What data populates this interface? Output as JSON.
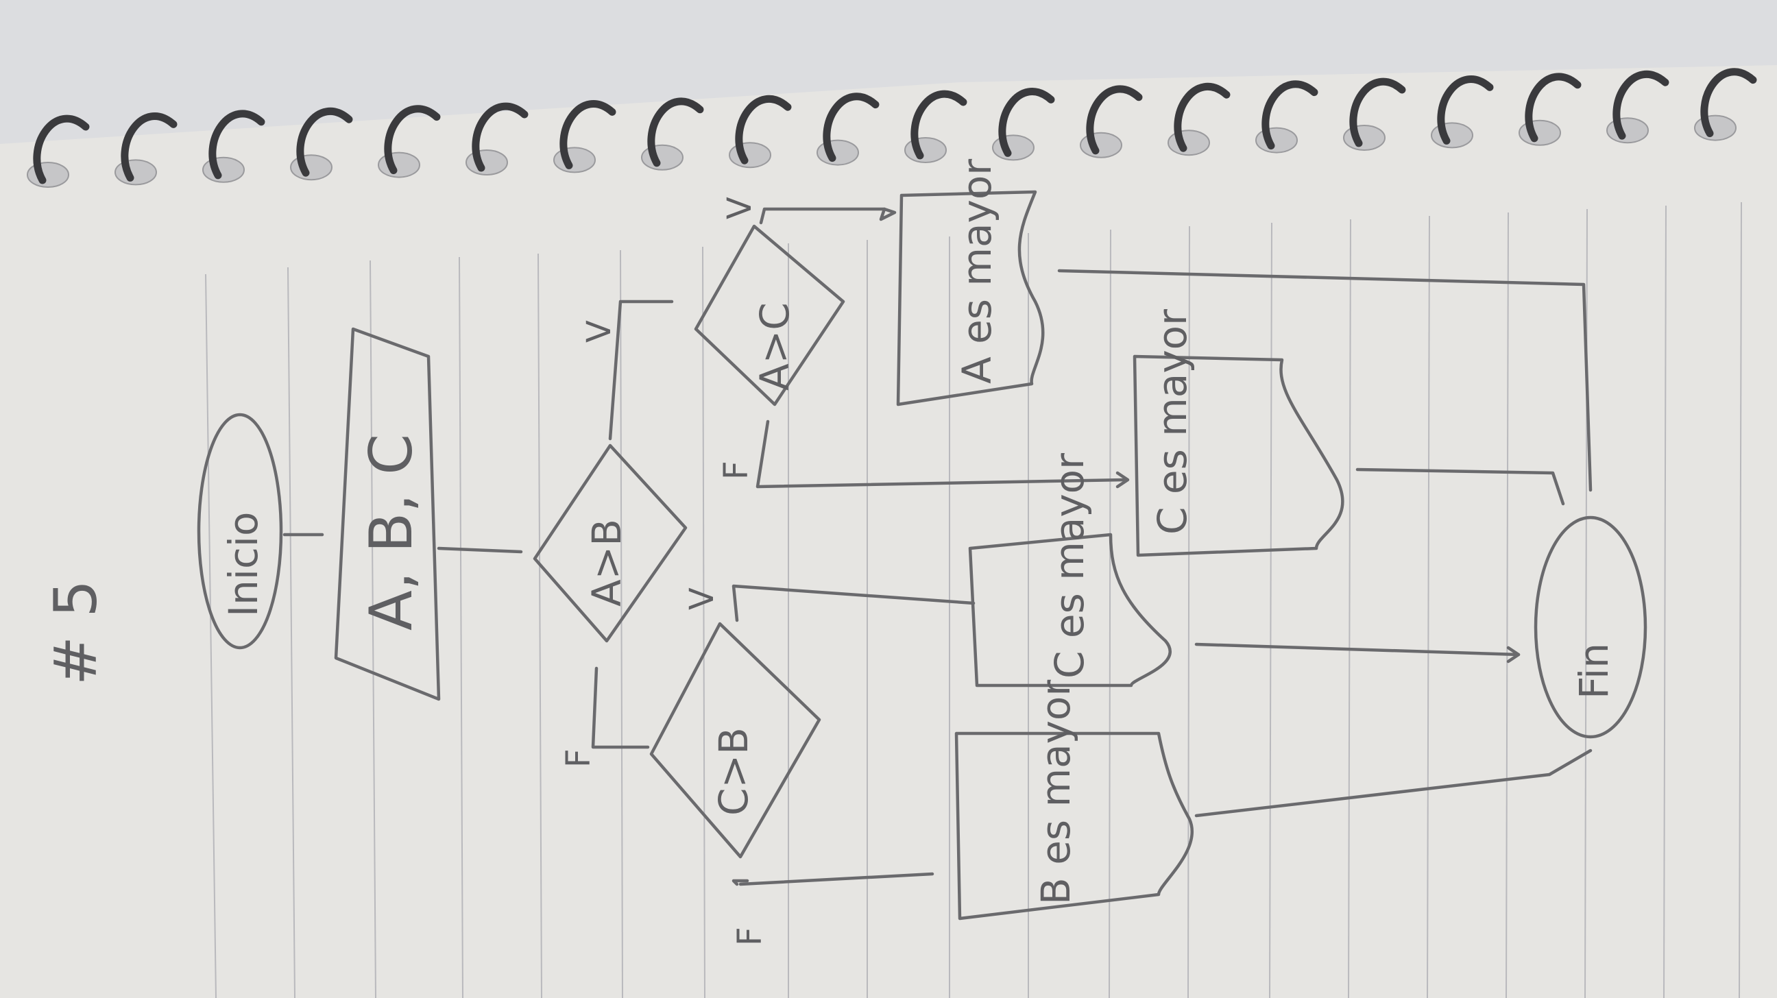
{
  "page_heading": "# 5",
  "flowchart": {
    "start": "Inicio",
    "input": "A, B, C",
    "decision_ab": "A>B",
    "decision_ac": "A>C",
    "decision_cb": "C>B",
    "output_a": "A es mayor",
    "output_c_left": "C es mayor",
    "output_c_right": "C es mayor",
    "output_b": "B es mayor",
    "end": "Fin",
    "true_label": "V",
    "false_label": "F"
  },
  "colors": {
    "paper": "#e6e5e2",
    "ink": "#6a6a6d",
    "rule_line": "#b9b9bd",
    "spiral": "#3a3a3d",
    "background": "#d9dadc"
  }
}
